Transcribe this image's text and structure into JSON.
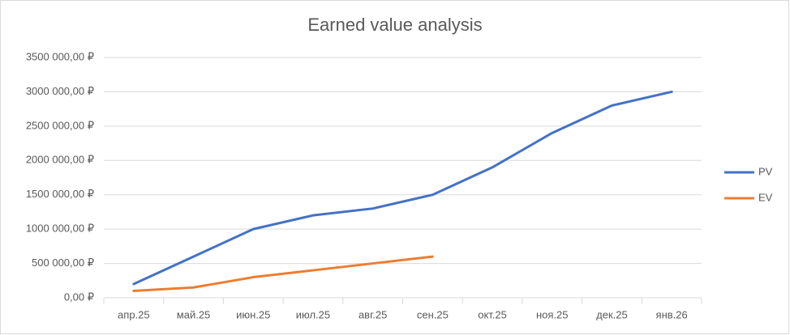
{
  "chart_data": {
    "type": "line",
    "title": "Earned value analysis",
    "categories": [
      "апр.25",
      "май.25",
      "июн.25",
      "июл.25",
      "авг.25",
      "сен.25",
      "окт.25",
      "ноя.25",
      "дек.25",
      "янв.26"
    ],
    "series": [
      {
        "name": "PV",
        "color": "#4472c4",
        "values": [
          200000,
          600000,
          1000000,
          1200000,
          1300000,
          1500000,
          1900000,
          2400000,
          2800000,
          3000000
        ]
      },
      {
        "name": "EV",
        "color": "#ed7d31",
        "values": [
          100000,
          150000,
          300000,
          400000,
          500000,
          600000,
          null,
          null,
          null,
          null
        ]
      }
    ],
    "ylim": [
      0,
      3500000
    ],
    "yticks": [
      {
        "value": 0,
        "label": "0,00 ₽"
      },
      {
        "value": 500000,
        "label": "500 000,00 ₽"
      },
      {
        "value": 1000000,
        "label": "1000 000,00 ₽"
      },
      {
        "value": 1500000,
        "label": "1500 000,00 ₽"
      },
      {
        "value": 2000000,
        "label": "2000 000,00 ₽"
      },
      {
        "value": 2500000,
        "label": "2500 000,00 ₽"
      },
      {
        "value": 3000000,
        "label": "3000 000,00 ₽"
      },
      {
        "value": 3500000,
        "label": "3500 000,00 ₽"
      }
    ],
    "grid": true,
    "legend": "right"
  }
}
